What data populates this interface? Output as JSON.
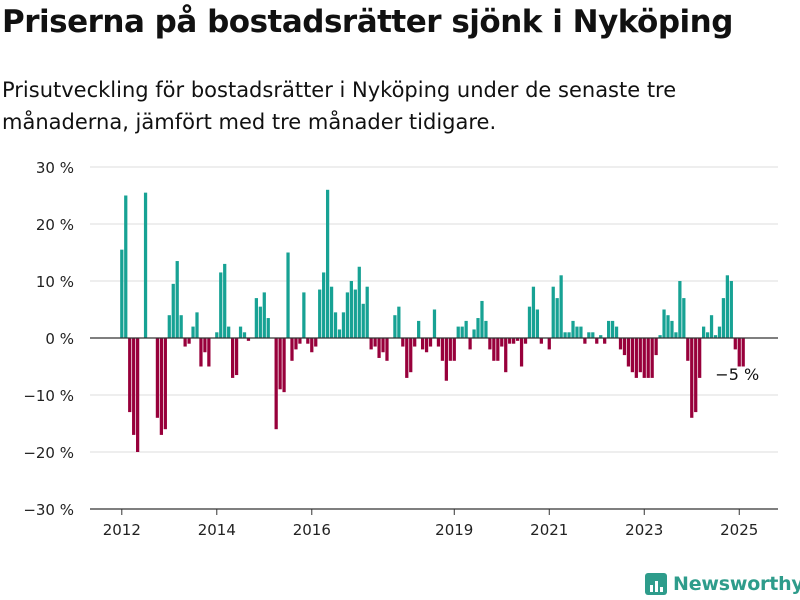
{
  "title": "Priserna på bostadsrätter sjönk i Nyköping",
  "subtitle": "Prisutveckling för bostadsrätter i Nyköping under de senaste tre månaderna, jämfört med tre månader tidigare.",
  "brand": {
    "name": "Newsworthy",
    "icon": "bar-chart-logo-icon"
  },
  "colors": {
    "positive": "#17a294",
    "negative": "#98003b",
    "grid": "#dddddd",
    "axis": "#333333"
  },
  "chart_data": {
    "type": "bar",
    "title": "Priserna på bostadsrätter sjönk i Nyköping",
    "subtitle": "Prisutveckling för bostadsrätter i Nyköping under de senaste tre månaderna, jämfört med tre månader tidigare.",
    "xlabel": "",
    "ylabel": "",
    "ylim": [
      -30,
      30
    ],
    "yticks": [
      30,
      20,
      10,
      0,
      -10,
      -20,
      -30
    ],
    "ytick_labels": [
      "30 %",
      "20 %",
      "10 %",
      "0 %",
      "−10 %",
      "−20 %",
      "−30 %"
    ],
    "xticks": [
      {
        "label": "2012",
        "month": 0
      },
      {
        "label": "2014",
        "month": 24
      },
      {
        "label": "2016",
        "month": 48
      },
      {
        "label": "2019",
        "month": 84
      },
      {
        "label": "2021",
        "month": 108
      },
      {
        "label": "2023",
        "month": 132
      },
      {
        "label": "2025",
        "month": 156
      }
    ],
    "x_start": "2012-01",
    "x_unit": "month",
    "grid": true,
    "annotation": {
      "text": "−5 %",
      "month": 155
    },
    "values": [
      15.5,
      25,
      -13,
      -17,
      -20,
      null,
      25.5,
      null,
      null,
      -14,
      -17,
      -16,
      4,
      9.5,
      13.5,
      4,
      -1.5,
      -1,
      2,
      4.5,
      -5,
      -2.5,
      -5,
      null,
      1,
      11.5,
      13,
      2,
      -7,
      -6.5,
      2,
      1,
      -0.5,
      null,
      7,
      5.5,
      8,
      3.5,
      null,
      -16,
      -9,
      -9.5,
      15,
      -4,
      -2,
      -1,
      8,
      -1,
      -2.5,
      -1.5,
      8.5,
      11.5,
      26,
      9,
      4.5,
      1.5,
      4.5,
      8,
      10,
      8.5,
      12.5,
      6,
      9,
      -2,
      -1.5,
      -3.5,
      -2.5,
      -4,
      null,
      4,
      5.5,
      -1.5,
      -7,
      -6,
      -1.5,
      3,
      -2,
      -2.5,
      -1.5,
      5,
      -1.5,
      -4,
      -7.5,
      -4,
      -4,
      2,
      2,
      3,
      -2,
      1.5,
      3.5,
      6.5,
      3,
      -2,
      -4,
      -4,
      -1.5,
      -6,
      -1,
      -1,
      -0.5,
      -5,
      -1,
      5.5,
      9,
      5,
      -1,
      null,
      -2,
      9,
      7,
      11,
      1,
      1,
      3,
      2,
      2,
      -1,
      1,
      1,
      -1,
      0.5,
      -1,
      3,
      3,
      2,
      -2,
      -3,
      -5,
      -6,
      -7,
      -6,
      -7,
      -7,
      -7,
      -3,
      0.5,
      5,
      4,
      3,
      1,
      10,
      7,
      -4,
      -14,
      -13,
      -7,
      2,
      1,
      4,
      0.5,
      2,
      7,
      11,
      10,
      -2,
      -5,
      -5
    ]
  }
}
